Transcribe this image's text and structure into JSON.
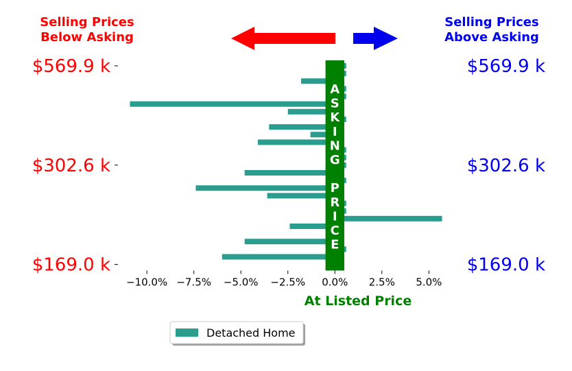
{
  "chart_data": {
    "type": "bar",
    "orientation": "horizontal",
    "xlabel": "At Listed Price",
    "xlim": [
      -11.5,
      6.3
    ],
    "x_ticks": [
      -10,
      -7.5,
      -5,
      -2.5,
      0,
      2.5,
      5
    ],
    "x_tick_labels": [
      "−10.0%",
      "−7.5%",
      "−5.0%",
      "−2.5%",
      "0.0%",
      "2.5%",
      "5.0%"
    ],
    "y_tick_labels_left": [
      "$569.9 k",
      "$302.6 k",
      "$169.0 k"
    ],
    "y_tick_labels_right": [
      "$569.9 k",
      "$302.6 k",
      "$169.0 k"
    ],
    "y_tick_rows": [
      0,
      13,
      26
    ],
    "series": [
      {
        "name": "Detached Home",
        "color": "#2a9d8f",
        "values": [
          0.6,
          0.6,
          -1.8,
          0.6,
          0.6,
          -10.9,
          -2.5,
          0.6,
          -3.5,
          -1.3,
          -4.1,
          0.6,
          0.6,
          0.6,
          -4.8,
          0.6,
          -7.4,
          -3.6,
          0.6,
          0.6,
          5.7,
          -2.4,
          0.5,
          -4.8,
          0.6,
          -6.0
        ]
      }
    ],
    "header_left": [
      "Selling Prices",
      "Below Asking"
    ],
    "header_right": [
      "Selling Prices",
      "Above Asking"
    ],
    "center_band_letters": [
      "A",
      "S",
      "K",
      "I",
      "N",
      "G",
      "",
      "P",
      "R",
      "I",
      "C",
      "E"
    ],
    "colors": {
      "below": "#ff0000",
      "above": "#0000ee",
      "band": "#008000",
      "bar": "#2a9d8f"
    },
    "legend": {
      "position": "bottom-center"
    }
  }
}
